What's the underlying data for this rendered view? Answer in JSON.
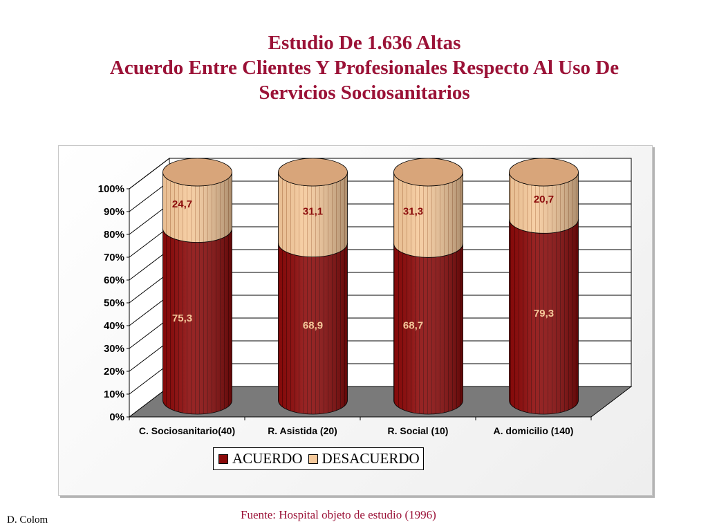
{
  "slide": {
    "title_lines": [
      "Estudio De 1.636 Altas",
      "Acuerdo Entre Clientes Y Profesionales  Respecto Al Uso De",
      "Servicios Sociosanitarios"
    ],
    "author": "D. Colom",
    "source": "Fuente: Hospital objeto de estudio (1996)"
  },
  "colors": {
    "title": "#9b1237",
    "acuerdo": "#8b0a0a",
    "desacuerdo": "#f5c99b",
    "acuerdo_label": "#f5c99b",
    "desacuerdo_label": "#8b0a0a",
    "floor": "#7a7a7a"
  },
  "chart_data": {
    "type": "bar",
    "style": "3d-cylinder-stacked-100",
    "categories": [
      "C. Sociosanitario(40)",
      "R. Asistida (20)",
      "R. Social (10)",
      "A. domicilio (140)"
    ],
    "series": [
      {
        "name": "ACUERDO",
        "values": [
          75.3,
          68.9,
          68.7,
          79.3
        ],
        "labels": [
          "75,3",
          "68,9",
          "68,7",
          "79,3"
        ]
      },
      {
        "name": "DESACUERDO",
        "values": [
          24.7,
          31.1,
          31.3,
          20.7
        ],
        "labels": [
          "24,7",
          "31,1",
          "31,3",
          "20,7"
        ]
      }
    ],
    "y_ticks": [
      "0%",
      "10%",
      "20%",
      "30%",
      "40%",
      "50%",
      "60%",
      "70%",
      "80%",
      "90%",
      "100%"
    ],
    "ylim": [
      0,
      100
    ],
    "grid": true,
    "legend_position": "bottom"
  }
}
